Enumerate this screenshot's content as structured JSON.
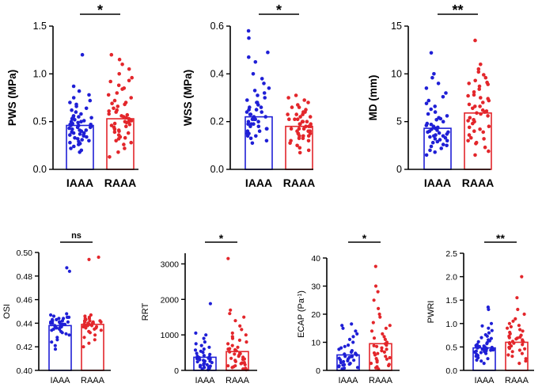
{
  "colors": {
    "iaaa": "#1f1fd6",
    "raaa": "#e3262b"
  },
  "chart_data": [
    {
      "type": "bar",
      "id": "pws",
      "ylabel": "PWS (MPa)",
      "ylim": [
        0,
        1.5
      ],
      "yticks": [
        0,
        0.5,
        1.0,
        1.5
      ],
      "ytick_labels": [
        "0.0",
        "0.5",
        "1.0",
        "1.5"
      ],
      "categories": [
        "IAAA",
        "RAAA"
      ],
      "values": [
        0.46,
        0.53
      ],
      "significance": "*",
      "points": [
        [
          0.18,
          0.2,
          0.22,
          0.24,
          0.26,
          0.27,
          0.28,
          0.3,
          0.31,
          0.32,
          0.33,
          0.34,
          0.35,
          0.36,
          0.37,
          0.38,
          0.38,
          0.39,
          0.4,
          0.41,
          0.42,
          0.43,
          0.44,
          0.45,
          0.46,
          0.46,
          0.47,
          0.48,
          0.49,
          0.5,
          0.51,
          0.52,
          0.53,
          0.54,
          0.55,
          0.56,
          0.58,
          0.6,
          0.62,
          0.64,
          0.66,
          0.68,
          0.7,
          0.72,
          0.75,
          0.78,
          0.82,
          0.87,
          1.2,
          0.44,
          0.41,
          0.36,
          0.5,
          0.55,
          0.29,
          0.47
        ],
        [
          0.13,
          0.18,
          0.22,
          0.26,
          0.28,
          0.3,
          0.32,
          0.34,
          0.36,
          0.38,
          0.4,
          0.41,
          0.42,
          0.44,
          0.45,
          0.46,
          0.48,
          0.49,
          0.5,
          0.51,
          0.52,
          0.53,
          0.54,
          0.55,
          0.56,
          0.58,
          0.6,
          0.62,
          0.64,
          0.66,
          0.68,
          0.7,
          0.72,
          0.75,
          0.78,
          0.8,
          0.84,
          0.88,
          0.92,
          0.96,
          1.0,
          1.05,
          1.1,
          1.15,
          1.2,
          0.57,
          0.47,
          0.39,
          0.61,
          0.69,
          0.33,
          0.5,
          0.85,
          0.93
        ]
      ]
    },
    {
      "type": "bar",
      "id": "wss",
      "ylabel": "WSS (MPa)",
      "ylim": [
        0,
        0.6
      ],
      "yticks": [
        0,
        0.2,
        0.4,
        0.6
      ],
      "ytick_labels": [
        "0.0",
        "0.2",
        "0.4",
        "0.6"
      ],
      "categories": [
        "IAAA",
        "RAAA"
      ],
      "values": [
        0.22,
        0.18
      ],
      "significance": "*",
      "points": [
        [
          0.11,
          0.12,
          0.13,
          0.14,
          0.15,
          0.15,
          0.16,
          0.17,
          0.17,
          0.18,
          0.18,
          0.19,
          0.19,
          0.2,
          0.2,
          0.21,
          0.21,
          0.22,
          0.22,
          0.23,
          0.23,
          0.24,
          0.24,
          0.25,
          0.25,
          0.26,
          0.27,
          0.28,
          0.29,
          0.3,
          0.31,
          0.32,
          0.33,
          0.34,
          0.36,
          0.38,
          0.4,
          0.45,
          0.47,
          0.49,
          0.55,
          0.58,
          0.19,
          0.21,
          0.16,
          0.26,
          0.28,
          0.14
        ],
        [
          0.07,
          0.08,
          0.09,
          0.1,
          0.11,
          0.12,
          0.13,
          0.13,
          0.14,
          0.14,
          0.15,
          0.15,
          0.16,
          0.16,
          0.17,
          0.17,
          0.18,
          0.18,
          0.19,
          0.19,
          0.2,
          0.2,
          0.21,
          0.21,
          0.22,
          0.22,
          0.23,
          0.23,
          0.24,
          0.25,
          0.26,
          0.27,
          0.28,
          0.29,
          0.3,
          0.31,
          0.15,
          0.18,
          0.2,
          0.12,
          0.24,
          0.17,
          0.26,
          0.19,
          0.21,
          0.23,
          0.16,
          0.14
        ]
      ]
    },
    {
      "type": "bar",
      "id": "md",
      "ylabel": "MD (mm)",
      "ylim": [
        0,
        15
      ],
      "yticks": [
        0,
        5,
        10,
        15
      ],
      "ytick_labels": [
        "0",
        "5",
        "10",
        "15"
      ],
      "categories": [
        "IAAA",
        "RAAA"
      ],
      "values": [
        4.3,
        5.9
      ],
      "significance": "**",
      "points": [
        [
          1.5,
          1.8,
          2.0,
          2.2,
          2.4,
          2.6,
          2.8,
          3.0,
          3.1,
          3.2,
          3.3,
          3.4,
          3.5,
          3.6,
          3.7,
          3.8,
          3.9,
          4.0,
          4.1,
          4.2,
          4.3,
          4.4,
          4.5,
          4.6,
          4.8,
          5.0,
          5.2,
          5.4,
          5.6,
          5.8,
          6.0,
          6.3,
          6.6,
          6.9,
          7.2,
          7.6,
          8.0,
          8.5,
          9.0,
          9.6,
          10.0,
          12.2,
          3.5,
          2.9,
          4.7,
          5.3,
          2.5,
          3.9
        ],
        [
          1.5,
          1.9,
          2.3,
          2.7,
          3.0,
          3.3,
          3.6,
          3.9,
          4.2,
          4.5,
          4.8,
          5.0,
          5.2,
          5.4,
          5.6,
          5.8,
          6.0,
          6.2,
          6.4,
          6.6,
          6.8,
          7.0,
          7.2,
          7.5,
          7.8,
          8.1,
          8.4,
          8.7,
          9.0,
          9.3,
          9.6,
          9.9,
          10.2,
          10.5,
          11.0,
          13.5,
          5.1,
          4.4,
          6.6,
          7.4,
          3.2,
          8.9,
          5.9,
          6.1,
          2.8,
          7.7,
          9.1,
          4.0
        ]
      ]
    },
    {
      "type": "bar",
      "id": "osi",
      "ylabel": "OSI",
      "ylim": [
        0.4,
        0.5
      ],
      "yticks": [
        0.4,
        0.42,
        0.44,
        0.46,
        0.48,
        0.5
      ],
      "ytick_labels": [
        "0.40",
        "0.42",
        "0.44",
        "0.46",
        "0.48",
        "0.50"
      ],
      "categories": [
        "IAAA",
        "RAAA"
      ],
      "values": [
        0.438,
        0.439
      ],
      "significance": "ns",
      "points": [
        [
          0.418,
          0.421,
          0.424,
          0.426,
          0.428,
          0.43,
          0.431,
          0.432,
          0.433,
          0.434,
          0.435,
          0.435,
          0.436,
          0.436,
          0.437,
          0.437,
          0.438,
          0.438,
          0.439,
          0.439,
          0.44,
          0.44,
          0.44,
          0.441,
          0.441,
          0.441,
          0.442,
          0.442,
          0.443,
          0.443,
          0.444,
          0.444,
          0.445,
          0.445,
          0.446,
          0.447,
          0.448,
          0.484,
          0.487,
          0.439,
          0.437,
          0.441
        ],
        [
          0.42,
          0.423,
          0.426,
          0.428,
          0.43,
          0.432,
          0.433,
          0.434,
          0.435,
          0.436,
          0.436,
          0.437,
          0.437,
          0.438,
          0.438,
          0.439,
          0.439,
          0.44,
          0.44,
          0.44,
          0.441,
          0.441,
          0.441,
          0.442,
          0.442,
          0.443,
          0.443,
          0.444,
          0.444,
          0.445,
          0.446,
          0.447,
          0.494,
          0.496,
          0.438,
          0.44,
          0.442
        ]
      ]
    },
    {
      "type": "bar",
      "id": "rrt",
      "ylabel": "RRT",
      "ylim": [
        0,
        3300
      ],
      "yticks": [
        0,
        1000,
        2000,
        3000
      ],
      "ytick_labels": [
        "0",
        "1000",
        "2000",
        "3000"
      ],
      "categories": [
        "IAAA",
        "RAAA"
      ],
      "values": [
        370,
        530
      ],
      "significance": "*",
      "points": [
        [
          20,
          40,
          60,
          80,
          100,
          120,
          140,
          160,
          180,
          200,
          220,
          240,
          260,
          280,
          300,
          320,
          340,
          360,
          380,
          400,
          420,
          450,
          480,
          510,
          540,
          570,
          600,
          650,
          700,
          750,
          800,
          900,
          1000,
          1050,
          1880,
          150,
          90,
          260,
          330
        ],
        [
          20,
          40,
          60,
          80,
          100,
          130,
          160,
          190,
          220,
          250,
          280,
          310,
          340,
          370,
          400,
          430,
          460,
          490,
          520,
          550,
          580,
          610,
          650,
          700,
          750,
          800,
          850,
          900,
          950,
          1000,
          1050,
          1150,
          1250,
          1400,
          1500,
          1600,
          1700,
          3150,
          210,
          320,
          470,
          130,
          600
        ]
      ]
    },
    {
      "type": "bar",
      "id": "ecap",
      "ylabel": "ECAP (Pa-1)",
      "ylim": [
        0,
        40
      ],
      "yticks": [
        0,
        10,
        20,
        30,
        40
      ],
      "ytick_labels": [
        "0",
        "10",
        "20",
        "30",
        "40"
      ],
      "categories": [
        "IAAA",
        "RAAA"
      ],
      "values": [
        5.5,
        9.5
      ],
      "significance": "*",
      "points": [
        [
          0.5,
          0.8,
          1.0,
          1.3,
          1.6,
          1.9,
          2.2,
          2.5,
          2.8,
          3.1,
          3.4,
          3.7,
          4.0,
          4.3,
          4.6,
          4.9,
          5.2,
          5.5,
          5.8,
          6.1,
          6.5,
          7.0,
          7.5,
          8.0,
          8.5,
          9.0,
          10.0,
          11.0,
          12.0,
          13.0,
          14.0,
          15.0,
          16.0,
          16.5,
          2.0,
          3.6,
          5.0
        ],
        [
          0.5,
          0.9,
          1.3,
          1.7,
          2.1,
          2.5,
          3.0,
          3.5,
          4.0,
          4.5,
          5.0,
          5.5,
          6.0,
          6.5,
          7.0,
          7.5,
          8.0,
          8.5,
          9.0,
          9.5,
          10.0,
          11.0,
          12.0,
          13.0,
          14.0,
          15.0,
          16.0,
          17.0,
          19.0,
          20.0,
          22.0,
          25.0,
          28.0,
          30.0,
          37.0,
          6.2,
          8.8,
          11.5,
          4.2
        ]
      ]
    },
    {
      "type": "bar",
      "id": "pwri",
      "ylabel": "PWRI",
      "ylim": [
        0,
        2.5
      ],
      "yticks": [
        0,
        0.5,
        1.0,
        1.5,
        2.0,
        2.5
      ],
      "ytick_labels": [
        "0.0",
        "0.5",
        "1.0",
        "1.5",
        "2.0",
        "2.5"
      ],
      "categories": [
        "IAAA",
        "RAAA"
      ],
      "values": [
        0.48,
        0.6
      ],
      "significance": "**",
      "points": [
        [
          0.15,
          0.2,
          0.22,
          0.25,
          0.27,
          0.3,
          0.32,
          0.34,
          0.36,
          0.38,
          0.4,
          0.41,
          0.42,
          0.43,
          0.44,
          0.45,
          0.46,
          0.47,
          0.48,
          0.49,
          0.5,
          0.51,
          0.52,
          0.53,
          0.55,
          0.57,
          0.59,
          0.61,
          0.63,
          0.65,
          0.68,
          0.7,
          0.73,
          0.76,
          0.8,
          0.85,
          0.9,
          0.95,
          1.0,
          1.3,
          1.35,
          0.44,
          0.39,
          0.5
        ],
        [
          0.15,
          0.2,
          0.25,
          0.3,
          0.33,
          0.36,
          0.4,
          0.43,
          0.46,
          0.49,
          0.52,
          0.55,
          0.57,
          0.59,
          0.61,
          0.63,
          0.65,
          0.67,
          0.69,
          0.71,
          0.73,
          0.75,
          0.78,
          0.81,
          0.84,
          0.87,
          0.9,
          0.93,
          0.96,
          1.0,
          1.05,
          1.1,
          1.2,
          1.3,
          1.55,
          2.0,
          0.58,
          0.62,
          0.47,
          0.7
        ]
      ]
    }
  ]
}
